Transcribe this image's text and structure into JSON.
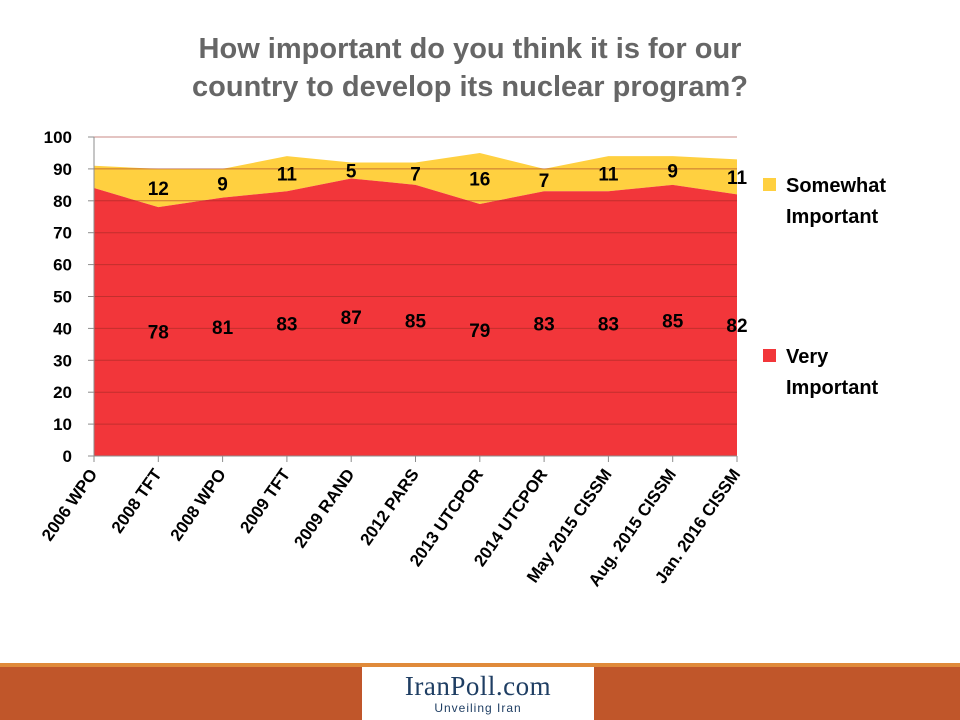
{
  "title_line1": "How important do you think it is for our",
  "title_line2": "country to develop its nuclear program?",
  "logo": {
    "text": "IranPoll.com",
    "tagline": "Unveiling Iran"
  },
  "colors": {
    "very": "#f2363a",
    "somewhat": "#ffd040",
    "text": "#000000",
    "title": "#666666",
    "footer": "#c0562a"
  },
  "chart_data": {
    "type": "area",
    "stacked": true,
    "categories": [
      "2006 WPO",
      "2008 TFT",
      "2008 WPO",
      "2009 TFT",
      "2009 RAND",
      "2012 PARS",
      "2013 UTCPOR",
      "2014 UTCPOR",
      "May 2015 CISSM",
      "Aug. 2015 CISSM",
      "Jan. 2016 CISSM"
    ],
    "series": [
      {
        "name": "Very Important",
        "color": "#f2363a",
        "values": [
          84,
          78,
          81,
          83,
          87,
          85,
          79,
          83,
          83,
          85,
          82
        ],
        "labels": [
          "",
          "78",
          "81",
          "83",
          "87",
          "85",
          "79",
          "83",
          "83",
          "85",
          "82"
        ]
      },
      {
        "name": "Somewhat Important",
        "color": "#ffd040",
        "values": [
          7,
          12,
          9,
          11,
          5,
          7,
          16,
          7,
          11,
          9,
          11
        ],
        "labels": [
          "",
          "12",
          "9",
          "11",
          "5",
          "7",
          "16",
          "7",
          "11",
          "9",
          "11"
        ]
      }
    ],
    "ylim": [
      0,
      100
    ],
    "yticks": [
      "0",
      "10",
      "20",
      "30",
      "40",
      "50",
      "60",
      "70",
      "80",
      "90",
      "100"
    ],
    "grid": true,
    "legend_position": "right",
    "legend": [
      {
        "line1": "Somewhat",
        "line2": "Important",
        "color": "#ffd040"
      },
      {
        "line1": "Very",
        "line2": "Important",
        "color": "#f2363a"
      }
    ]
  }
}
